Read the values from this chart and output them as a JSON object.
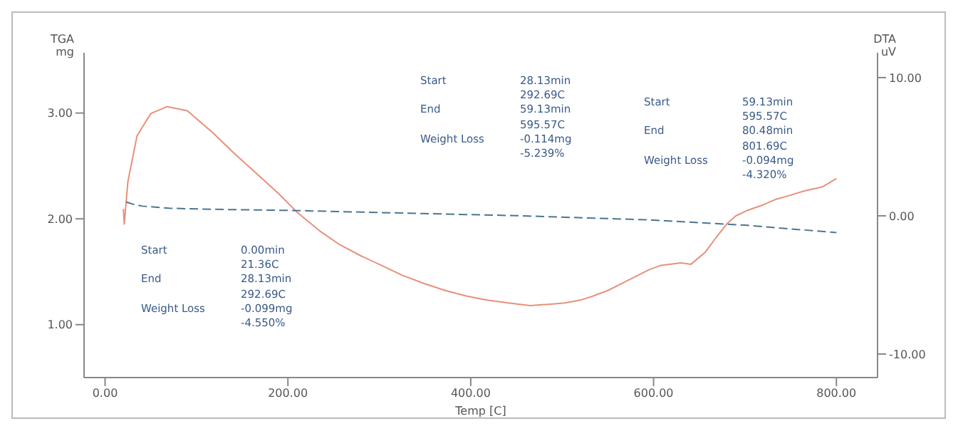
{
  "chart_data": {
    "type": "line",
    "xlabel": "Temp  [C]",
    "ylabel": "TGA\nmg",
    "y2label": "DTA\nuV",
    "xlim": [
      -23,
      845
    ],
    "xticks": [
      {
        "value": 0,
        "label": "0.00"
      },
      {
        "value": 200,
        "label": "200.00"
      },
      {
        "value": 400,
        "label": "400.00"
      },
      {
        "value": 600,
        "label": "600.00"
      },
      {
        "value": 800,
        "label": "800.00"
      }
    ],
    "ylim": [
      0.5,
      3.57
    ],
    "yticks": [
      {
        "value": 1,
        "label": "1.00"
      },
      {
        "value": 2,
        "label": "2.00"
      },
      {
        "value": 3,
        "label": "3.00"
      }
    ],
    "y2lim": [
      -11.7,
      11.8
    ],
    "y2ticks": [
      {
        "value": -10,
        "label": "-10.00"
      },
      {
        "value": 0,
        "label": "0.00"
      },
      {
        "value": 10,
        "label": "10.00"
      }
    ],
    "marker": "none",
    "series": [
      {
        "color": "#e8907a",
        "axis": "y2",
        "line_style": "solid",
        "x": [
          20,
          21,
          25,
          35,
          50,
          68,
          90,
          118,
          140,
          165,
          190,
          211,
          235,
          257,
          280,
          303,
          325,
          349,
          372,
          395,
          418,
          441,
          465,
          485,
          503,
          520,
          534,
          550,
          565,
          580,
          595,
          607,
          618,
          630,
          641,
          657,
          668,
          680,
          690,
          703,
          720,
          734,
          750,
          765,
          785,
          800
        ],
        "values": [
          0.5,
          -0.6,
          2.5,
          5.8,
          7.4,
          7.9,
          7.6,
          6.0,
          4.6,
          3.1,
          1.6,
          0.2,
          -1.1,
          -2.1,
          -2.9,
          -3.6,
          -4.3,
          -4.9,
          -5.4,
          -5.8,
          -6.1,
          -6.3,
          -6.5,
          -6.4,
          -6.3,
          -6.1,
          -5.8,
          -5.4,
          -4.9,
          -4.4,
          -3.9,
          -3.6,
          -3.5,
          -3.4,
          -3.5,
          -2.6,
          -1.6,
          -0.6,
          0,
          0.4,
          0.8,
          1.2,
          1.5,
          1.8,
          2.1,
          2.7
        ]
      },
      {
        "color": "#4a7690",
        "axis": "y",
        "line_style": "dashed",
        "x": [
          23,
          30,
          41,
          70,
          118,
          200,
          349,
          450,
          595,
          700,
          800
        ],
        "values": [
          2.16,
          2.14,
          2.12,
          2.1,
          2.09,
          2.08,
          2.05,
          2.03,
          1.99,
          1.94,
          1.87
        ]
      }
    ],
    "annotations": [
      "Start",
      "0.00min",
      "21.36C",
      "End",
      "28.13min",
      "292.69C",
      "Weight Loss",
      "-0.099mg",
      "-4.550%",
      "Start",
      "28.13min",
      "292.69C",
      "End",
      "59.13min",
      "595.57C",
      "Weight Loss",
      "-0.114mg",
      "-5.239%",
      "Start",
      "59.13min",
      "595.57C",
      "End",
      "80.48min",
      "801.69C",
      "Weight Loss",
      "-0.094mg",
      "-4.320%"
    ]
  }
}
